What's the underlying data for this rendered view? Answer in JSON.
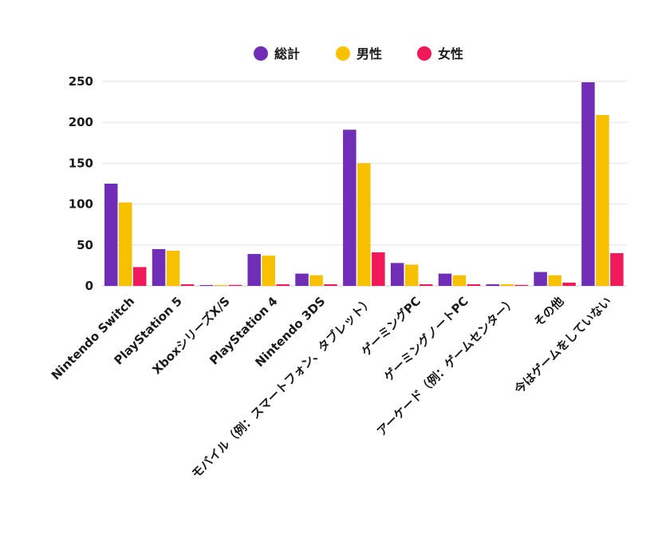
{
  "chart_data": {
    "type": "bar",
    "categories": [
      "Nintendo Switch",
      "PlayStation 5",
      "XboxシリーズX/S",
      "PlayStation 4",
      "Nintendo 3DS",
      "モバイル（例：スマートフォン、タブレット）",
      "ゲーミングPC",
      "ゲーミングノートPC",
      "アーケード（例：ゲームセンター）",
      "その他",
      "今はゲームをしていない"
    ],
    "series": [
      {
        "name": "総計",
        "color": "#6f2eb5",
        "values": [
          125,
          45,
          1,
          39,
          15,
          191,
          28,
          15,
          2,
          17,
          249
        ]
      },
      {
        "name": "男性",
        "color": "#f7c100",
        "values": [
          102,
          43,
          1,
          37,
          13,
          150,
          26,
          13,
          2,
          13,
          209
        ]
      },
      {
        "name": "女性",
        "color": "#f0195a",
        "values": [
          23,
          2,
          0,
          2,
          2,
          41,
          2,
          2,
          0,
          4,
          40
        ]
      }
    ],
    "yticks": [
      0,
      50,
      100,
      150,
      200,
      250
    ],
    "ylim": [
      0,
      250
    ],
    "grid": true,
    "legend_position": "top-center",
    "title": "",
    "xlabel": "",
    "ylabel": ""
  }
}
